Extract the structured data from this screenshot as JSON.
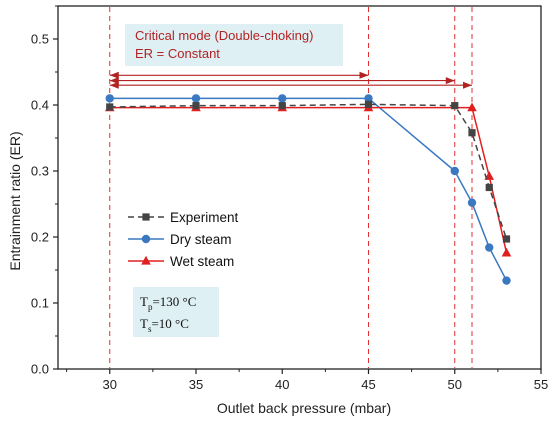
{
  "chart_data": {
    "type": "line",
    "xlabel": "Outlet back pressure (mbar)",
    "ylabel": "Entrainment ratio (ER)",
    "xlim": [
      27,
      55
    ],
    "ylim": [
      0.0,
      0.55
    ],
    "xticks": [
      30,
      35,
      40,
      45,
      50,
      55
    ],
    "yticks": [
      0.0,
      0.1,
      0.2,
      0.3,
      0.4,
      0.5
    ],
    "xtick_labels": [
      "30",
      "35",
      "40",
      "45",
      "50",
      "55"
    ],
    "ytick_labels": [
      "0.0",
      "0.1",
      "0.2",
      "0.3",
      "0.4",
      "0.5"
    ],
    "grid": false,
    "legend_position": "center-left",
    "series": [
      {
        "name": "Experiment",
        "color": "#444444",
        "marker": "square",
        "line_style": "dashed",
        "x": [
          30,
          35,
          40,
          45,
          50,
          51,
          52,
          53
        ],
        "y": [
          0.397,
          0.399,
          0.399,
          0.401,
          0.399,
          0.358,
          0.275,
          0.197
        ]
      },
      {
        "name": "Dry steam",
        "color": "#3a78c2",
        "marker": "circle",
        "line_style": "solid",
        "x": [
          30,
          35,
          40,
          45,
          50,
          51,
          52,
          53
        ],
        "y": [
          0.41,
          0.41,
          0.41,
          0.41,
          0.3,
          0.252,
          0.184,
          0.134
        ]
      },
      {
        "name": "Wet steam",
        "color": "#e02020",
        "marker": "triangle",
        "line_style": "solid",
        "x": [
          30,
          35,
          40,
          45,
          51,
          52,
          53
        ],
        "y": [
          0.396,
          0.396,
          0.396,
          0.396,
          0.396,
          0.292,
          0.176
        ]
      }
    ],
    "reference_lines_x": [
      30,
      45,
      50,
      51
    ],
    "range_arrows": [
      {
        "from": 30,
        "to": 45,
        "y": 0.445
      },
      {
        "from": 30,
        "to": 50,
        "y": 0.437
      },
      {
        "from": 30,
        "to": 51,
        "y": 0.43
      }
    ],
    "annotation": {
      "line1": "Critical mode (Double-choking)",
      "line2": "ER = Constant",
      "color": "#b22222",
      "background": "#dff0f5"
    },
    "conditions": {
      "tp_main": "T",
      "tp_sub": "p",
      "tp_rest": "=130 °C",
      "ts_main": "T",
      "ts_sub": "s",
      "ts_rest": "=10 °C",
      "background": "#dff0f5"
    }
  }
}
